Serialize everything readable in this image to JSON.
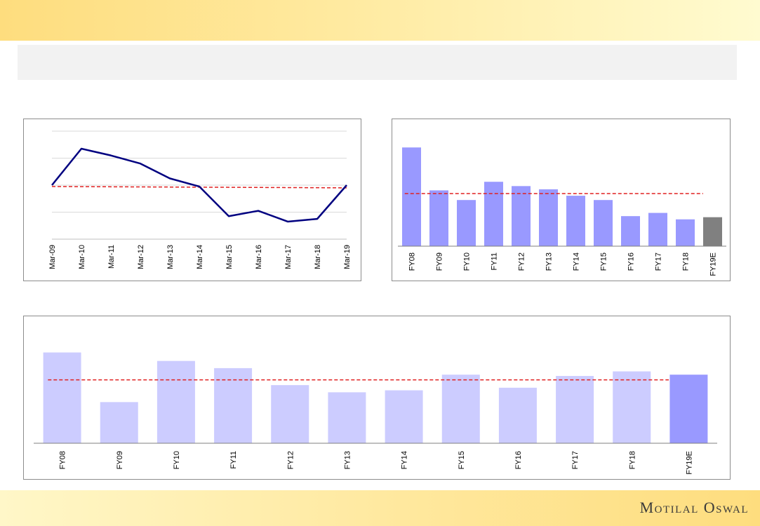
{
  "header": {
    "title": "",
    "subtitle": ""
  },
  "footer": {
    "logo_text": "Motilal Oswal"
  },
  "colors": {
    "line": "#000080",
    "avg_line": "#e02020",
    "bar_blue": "#9999ff",
    "bar_grey": "#808080",
    "bar_light": "#ccccff",
    "grid": "#d9d9d9"
  },
  "chart_data": [
    {
      "type": "line",
      "title": "",
      "x": [
        "Mar-09",
        "Mar-10",
        "Mar-11",
        "Mar-12",
        "Mar-13",
        "Mar-14",
        "Mar-15",
        "Mar-16",
        "Mar-17",
        "Mar-18",
        "Mar-19"
      ],
      "series": [
        {
          "values": [
            20,
            33.5,
            31,
            28,
            22.5,
            19.5,
            8.5,
            10.5,
            6.5,
            7.5,
            20
          ]
        }
      ],
      "reference_line": {
        "start": 19.5,
        "end": 19
      },
      "ylim": [
        0,
        40
      ],
      "grid": true,
      "y_tick_labels_visible": false
    },
    {
      "type": "bar",
      "title": "",
      "categories": [
        "FY08",
        "FY09",
        "FY10",
        "FY11",
        "FY12",
        "FY13",
        "FY14",
        "FY15",
        "FY16",
        "FY17",
        "FY18",
        "FY19E"
      ],
      "values": [
        92,
        52,
        43,
        60,
        56,
        53,
        47,
        43,
        28,
        31,
        25,
        27
      ],
      "highlight_last": "grey",
      "reference_line": {
        "value": 49
      },
      "ylim": [
        0,
        100
      ],
      "grid": false
    },
    {
      "type": "bar",
      "title": "",
      "categories": [
        "FY08",
        "FY09",
        "FY10",
        "FY11",
        "FY12",
        "FY13",
        "FY14",
        "FY15",
        "FY16",
        "FY17",
        "FY18",
        "FY19E"
      ],
      "values": [
        139,
        63,
        126,
        115,
        89,
        78,
        81,
        105,
        85,
        103,
        110,
        105
      ],
      "highlight_last": "blue",
      "reference_line": {
        "value": 97
      },
      "ylim": [
        0,
        160
      ],
      "grid": false
    }
  ]
}
